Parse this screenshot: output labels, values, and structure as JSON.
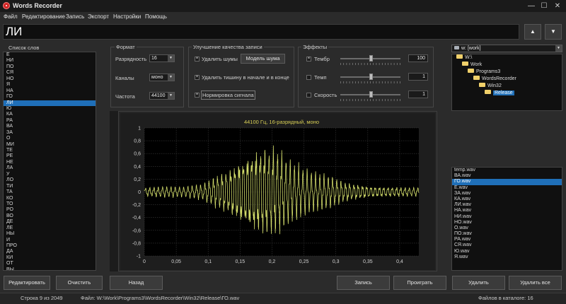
{
  "window": {
    "title": "Words Recorder",
    "min_glyph": "—",
    "max_glyph": "☐",
    "close_glyph": "✕"
  },
  "menu": [
    "Файл",
    "Редактирование",
    "Запись",
    "Экспорт",
    "Настройки",
    "Помощь"
  ],
  "current_word": "ЛИ",
  "nav": {
    "up_glyph": "▲",
    "down_glyph": "▼"
  },
  "word_list": {
    "label": "Список слов",
    "items": [
      "Е",
      "НИ",
      "ПО",
      "СЯ",
      "НО",
      "Я",
      "НА",
      "ГО",
      "ЛИ",
      "Ю",
      "КА",
      "РА",
      "ВА",
      "ЗА",
      "О",
      "МИ",
      "ТЕ",
      "РЕ",
      "НЕ",
      "ЛА",
      "У",
      "ЛО",
      "ТИ",
      "ТА",
      "КО",
      "ТО",
      "РО",
      "ВО",
      "ДЕ",
      "ЛЕ",
      "НЫ",
      "И",
      "ПРО",
      "ДА",
      "КИ",
      "ОТ",
      "ВЫ"
    ],
    "selected_index": 8
  },
  "format": {
    "label": "Формат",
    "bit_label": "Разрядность",
    "bit_value": "16",
    "channels_label": "Каналы",
    "channels_value": "моно",
    "rate_label": "Частота",
    "rate_value": "44100"
  },
  "quality": {
    "label": "Улучшение качества записи",
    "noise_label": "Удалить шумы",
    "noise_checked": true,
    "noise_model_button": "Модель шума",
    "silence_label": "Удалить тишину в начале и в конце",
    "silence_checked": true,
    "normalize_label": "Нормировка сигнала",
    "normalize_checked": true,
    "check_glyph": "×"
  },
  "effects": {
    "label": "Эффекты",
    "timbre_label": "Тембр",
    "timbre_checked": true,
    "timbre_value": "100",
    "timbre_level": 0.5,
    "tempo_label": "Темп",
    "tempo_checked": false,
    "tempo_value": "1",
    "tempo_level": 0.5,
    "speed_label": "Скорость",
    "speed_checked": false,
    "speed_value": "1",
    "speed_level": 0.5
  },
  "drive": {
    "value": "w: [work]"
  },
  "folders": [
    {
      "name": "W:\\",
      "level": 0,
      "open": true
    },
    {
      "name": "Work",
      "level": 1,
      "open": true
    },
    {
      "name": "Programs3",
      "level": 2,
      "open": true
    },
    {
      "name": "WordsRecorder",
      "level": 3,
      "open": true
    },
    {
      "name": "Win32",
      "level": 4,
      "open": true
    },
    {
      "name": "Release",
      "level": 5,
      "open": true,
      "selected": true
    }
  ],
  "files": {
    "items": [
      "temp.wav",
      "ВА.wav",
      "ГО.wav",
      "Е.wav",
      "ЗА.wav",
      "КА.wav",
      "ЛИ.wav",
      "НА.wav",
      "НИ.wav",
      "НО.wav",
      "О.wav",
      "ПО.wav",
      "РА.wav",
      "СЯ.wav",
      "Ю.wav",
      "Я.wav"
    ],
    "selected_index": 2
  },
  "chart_data": {
    "type": "line",
    "title": "44100 Гц, 16-разрядный, моно",
    "xlim": [
      0,
      0.43
    ],
    "ylim": [
      -1,
      1
    ],
    "xticks": [
      "0",
      "0,05",
      "0,1",
      "0,15",
      "0,2",
      "0,25",
      "0,3",
      "0,35",
      "0,4"
    ],
    "xtick_values": [
      0,
      0.05,
      0.1,
      0.15,
      0.2,
      0.25,
      0.3,
      0.35,
      0.4
    ],
    "yticks": [
      "1",
      "0,8",
      "0,6",
      "0,4",
      "0,2",
      "0",
      "-0,2",
      "-0,4",
      "-0,6",
      "-0,8",
      "-1"
    ],
    "ytick_values": [
      1,
      0.8,
      0.6,
      0.4,
      0.2,
      0,
      -0.2,
      -0.4,
      -0.6,
      -0.8,
      -1
    ],
    "grid": true,
    "envelope": {
      "t": [
        0,
        0.03,
        0.06,
        0.09,
        0.11,
        0.13,
        0.15,
        0.17,
        0.19,
        0.21,
        0.23,
        0.25,
        0.27,
        0.29,
        0.31,
        0.33,
        0.36,
        0.39,
        0.43
      ],
      "amp": [
        0.08,
        0.1,
        0.09,
        0.14,
        0.28,
        0.42,
        0.62,
        0.8,
        0.88,
        0.78,
        0.55,
        0.42,
        0.34,
        0.3,
        0.2,
        0.15,
        0.1,
        0.09,
        0.08
      ]
    },
    "series_color": "#d2dc6a"
  },
  "buttons": {
    "edit": "Редактировать",
    "clear": "Очистить",
    "back": "Назад",
    "record": "Запись",
    "play": "Проиграть",
    "delete": "Удалить",
    "delete_all": "Удалить все"
  },
  "status": {
    "line": "Строка 9 из 2049",
    "file": "Файл: W:\\Work\\Programs3\\WordsRecorder\\Win32\\Release\\ГО.wav",
    "count": "Файлов в каталоге: 16"
  }
}
